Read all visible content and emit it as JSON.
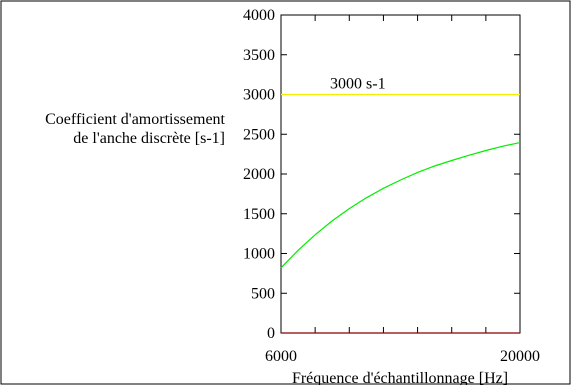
{
  "chart_data": {
    "type": "line",
    "title": "",
    "xlabel": "Fréquence d'échantillonnage [Hz]",
    "ylabel_lines": [
      "Coefficient d'amortissement",
      "de l'anche discrète [s-1]"
    ],
    "xlim": [
      6000,
      20000
    ],
    "ylim": [
      0,
      4000
    ],
    "x_ticks": [
      6000,
      20000
    ],
    "y_ticks": [
      0,
      500,
      1000,
      1500,
      2000,
      2500,
      3000,
      3500,
      4000
    ],
    "grid": false,
    "legend": "none",
    "series": [
      {
        "color": "#00ee00",
        "x": [
          6000,
          7000,
          8000,
          9000,
          10000,
          11000,
          12000,
          13000,
          14000,
          15000,
          16000,
          17000,
          18000,
          19000,
          20000
        ],
        "y": [
          820,
          1040,
          1235,
          1410,
          1565,
          1700,
          1820,
          1925,
          2020,
          2100,
          2170,
          2235,
          2295,
          2350,
          2395
        ]
      },
      {
        "color": "#f0f000",
        "x": [
          6000,
          20000
        ],
        "y": [
          3000,
          3000
        ]
      },
      {
        "color": "#880000",
        "x": [
          6000,
          20000
        ],
        "y": [
          0,
          0
        ]
      }
    ],
    "annotations": [
      {
        "text": "3000 s-1",
        "x": 10500,
        "y": 3000
      }
    ]
  }
}
